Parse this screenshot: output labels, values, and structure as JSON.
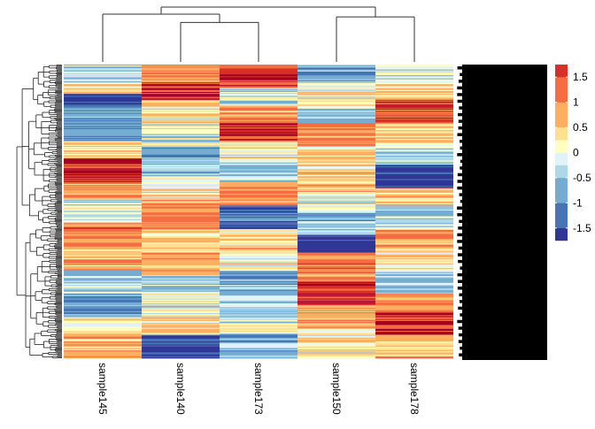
{
  "chart_data": {
    "type": "heatmap",
    "title": "",
    "xlabel": "",
    "ylabel": "",
    "columns": [
      "sample145",
      "sample140",
      "sample173",
      "sample150",
      "sample178"
    ],
    "n_rows": 300,
    "row_labels_legible": false,
    "column_dendrogram": {
      "merges": [
        {
          "left": "sample140",
          "right": "sample173",
          "height": 0.72
        },
        {
          "left": "sample150",
          "right": "sample178",
          "height": 0.82
        },
        {
          "left": "sample145",
          "right": "(sample140, sample173)",
          "height": 0.87
        },
        {
          "left": "(sample145, sample140, sample173)",
          "right": "(sample150, sample178)",
          "height": 1.0
        }
      ]
    },
    "row_dendrogram": "shown, left side",
    "color_scale": {
      "breaks": [
        -1.75,
        -1.5,
        -1.0,
        -0.5,
        -0.25,
        0,
        0.25,
        0.5,
        1.0,
        1.5,
        1.75
      ],
      "colors": [
        "#313695",
        "#4575B4",
        "#74ADD1",
        "#ABD9E9",
        "#E0F3F8",
        "#FFFFBF",
        "#FEE090",
        "#FDAE61",
        "#F46D43",
        "#D73027",
        "#A50026"
      ],
      "legend_ticks": [
        1.5,
        1,
        0.5,
        0,
        -0.5,
        -1,
        -1.5
      ],
      "legend_placement": "right"
    },
    "column_bands": [
      [
        {
          "from": 0.0,
          "to": 0.06,
          "v": -0.4
        },
        {
          "from": 0.06,
          "to": 0.1,
          "v": 0.2
        },
        {
          "from": 0.1,
          "to": 0.14,
          "v": -1.8
        },
        {
          "from": 0.14,
          "to": 0.2,
          "v": -0.8
        },
        {
          "from": 0.2,
          "to": 0.26,
          "v": -1.0
        },
        {
          "from": 0.26,
          "to": 0.32,
          "v": 0.5
        },
        {
          "from": 0.32,
          "to": 0.4,
          "v": 1.8
        },
        {
          "from": 0.4,
          "to": 0.46,
          "v": 0.9
        },
        {
          "from": 0.46,
          "to": 0.54,
          "v": -0.2
        },
        {
          "from": 0.54,
          "to": 0.62,
          "v": 1.0
        },
        {
          "from": 0.62,
          "to": 0.7,
          "v": 0.7
        },
        {
          "from": 0.7,
          "to": 0.78,
          "v": -0.3
        },
        {
          "from": 0.78,
          "to": 0.86,
          "v": -0.9
        },
        {
          "from": 0.86,
          "to": 0.92,
          "v": 0.0
        },
        {
          "from": 0.92,
          "to": 1.0,
          "v": 0.6
        }
      ],
      [
        {
          "from": 0.0,
          "to": 0.06,
          "v": 1.0
        },
        {
          "from": 0.06,
          "to": 0.12,
          "v": 1.7
        },
        {
          "from": 0.12,
          "to": 0.2,
          "v": 0.4
        },
        {
          "from": 0.2,
          "to": 0.28,
          "v": -0.2
        },
        {
          "from": 0.28,
          "to": 0.38,
          "v": -0.6
        },
        {
          "from": 0.38,
          "to": 0.46,
          "v": 0.3
        },
        {
          "from": 0.46,
          "to": 0.56,
          "v": 0.9
        },
        {
          "from": 0.56,
          "to": 0.64,
          "v": 0.4
        },
        {
          "from": 0.64,
          "to": 0.72,
          "v": 0.8
        },
        {
          "from": 0.72,
          "to": 0.78,
          "v": -0.3
        },
        {
          "from": 0.78,
          "to": 0.86,
          "v": 0.0
        },
        {
          "from": 0.86,
          "to": 0.92,
          "v": 0.4
        },
        {
          "from": 0.92,
          "to": 1.0,
          "v": -1.6
        }
      ],
      [
        {
          "from": 0.0,
          "to": 0.08,
          "v": 1.6
        },
        {
          "from": 0.08,
          "to": 0.14,
          "v": -0.2
        },
        {
          "from": 0.14,
          "to": 0.2,
          "v": 0.9
        },
        {
          "from": 0.2,
          "to": 0.26,
          "v": 1.7
        },
        {
          "from": 0.26,
          "to": 0.32,
          "v": 0.3
        },
        {
          "from": 0.32,
          "to": 0.4,
          "v": -0.3
        },
        {
          "from": 0.4,
          "to": 0.48,
          "v": 0.8
        },
        {
          "from": 0.48,
          "to": 0.56,
          "v": -1.3
        },
        {
          "from": 0.56,
          "to": 0.64,
          "v": 0.5
        },
        {
          "from": 0.64,
          "to": 0.7,
          "v": 0.1
        },
        {
          "from": 0.7,
          "to": 0.78,
          "v": -0.7
        },
        {
          "from": 0.78,
          "to": 0.86,
          "v": -0.4
        },
        {
          "from": 0.86,
          "to": 0.92,
          "v": 0.0
        },
        {
          "from": 0.92,
          "to": 1.0,
          "v": -0.6
        }
      ],
      [
        {
          "from": 0.0,
          "to": 0.06,
          "v": -0.7
        },
        {
          "from": 0.06,
          "to": 0.14,
          "v": 0.2
        },
        {
          "from": 0.14,
          "to": 0.2,
          "v": -0.4
        },
        {
          "from": 0.2,
          "to": 0.28,
          "v": 1.0
        },
        {
          "from": 0.28,
          "to": 0.36,
          "v": 0.3
        },
        {
          "from": 0.36,
          "to": 0.44,
          "v": 0.6
        },
        {
          "from": 0.44,
          "to": 0.5,
          "v": 0.0
        },
        {
          "from": 0.5,
          "to": 0.58,
          "v": -0.6
        },
        {
          "from": 0.58,
          "to": 0.64,
          "v": -1.9
        },
        {
          "from": 0.64,
          "to": 0.74,
          "v": 1.0
        },
        {
          "from": 0.74,
          "to": 0.82,
          "v": 1.7
        },
        {
          "from": 0.82,
          "to": 0.9,
          "v": 0.8
        },
        {
          "from": 0.9,
          "to": 1.0,
          "v": 0.2
        }
      ],
      [
        {
          "from": 0.0,
          "to": 0.06,
          "v": -0.3
        },
        {
          "from": 0.06,
          "to": 0.12,
          "v": 0.5
        },
        {
          "from": 0.12,
          "to": 0.2,
          "v": 1.4
        },
        {
          "from": 0.2,
          "to": 0.28,
          "v": 0.4
        },
        {
          "from": 0.28,
          "to": 0.34,
          "v": -0.2
        },
        {
          "from": 0.34,
          "to": 0.42,
          "v": -1.8
        },
        {
          "from": 0.42,
          "to": 0.48,
          "v": 0.6
        },
        {
          "from": 0.48,
          "to": 0.56,
          "v": -0.4
        },
        {
          "from": 0.56,
          "to": 0.62,
          "v": 0.9
        },
        {
          "from": 0.62,
          "to": 0.7,
          "v": 0.3
        },
        {
          "from": 0.7,
          "to": 0.78,
          "v": -0.4
        },
        {
          "from": 0.78,
          "to": 0.84,
          "v": 0.9
        },
        {
          "from": 0.84,
          "to": 0.92,
          "v": 1.7
        },
        {
          "from": 0.92,
          "to": 1.0,
          "v": 0.6
        }
      ]
    ]
  }
}
